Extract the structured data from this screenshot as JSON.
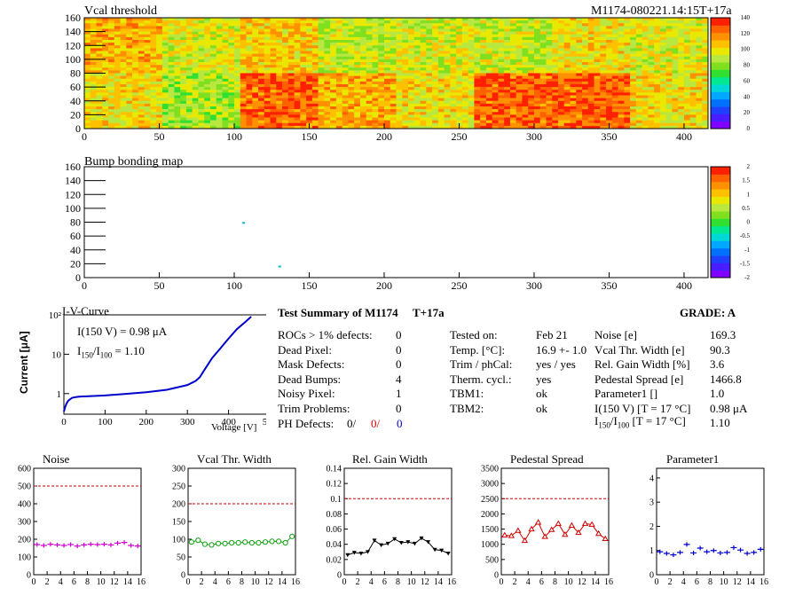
{
  "colors": {
    "palette": [
      "#7f00ff",
      "#4a1dff",
      "#2040ff",
      "#0070ff",
      "#00a8ff",
      "#00d8d8",
      "#00e890",
      "#30e030",
      "#80e020",
      "#b8e840",
      "#e8e800",
      "#ffc000",
      "#ff9000",
      "#ff6000",
      "#ff2000"
    ],
    "magenta": "#d000d0",
    "green": "#10a010",
    "black": "#000000",
    "red": "#d00000",
    "blue": "#0000d0",
    "ref_line": "#cc0000"
  },
  "vcal_map": {
    "title": "Vcal threshold",
    "module_label": "M1174-080221.14:15T+17a",
    "x_ticks": [
      "0",
      "50",
      "100",
      "150",
      "200",
      "250",
      "300",
      "350",
      "400"
    ],
    "y_ticks": [
      "0",
      "20",
      "40",
      "60",
      "80",
      "100",
      "120",
      "140",
      "160"
    ],
    "z_ticks": [
      "0",
      "20",
      "40",
      "60",
      "80",
      "100",
      "120",
      "140"
    ]
  },
  "bump_map": {
    "title": "Bump bonding map",
    "x_ticks": [
      "0",
      "50",
      "100",
      "150",
      "200",
      "250",
      "300",
      "350",
      "400"
    ],
    "y_ticks": [
      "0",
      "20",
      "40",
      "60",
      "80",
      "100",
      "120",
      "140",
      "160"
    ],
    "z_ticks": [
      "-2",
      "-1.5",
      "-1",
      "-0.5",
      "0",
      "0.5",
      "1",
      "1.5",
      "2"
    ]
  },
  "iv": {
    "title": "I-V-Curve",
    "ylabel": "Current [μA]",
    "xlabel": "Voltage [V]",
    "x_ticks": [
      "0",
      "100",
      "200",
      "300",
      "400",
      "500"
    ],
    "y_ticks": [
      "1",
      "10",
      "10²"
    ],
    "ann1": "I(150 V) = 0.98 μA",
    "ann2_a": "I",
    "ann2_sub1": "150",
    "ann2_b": "/I",
    "ann2_sub2": "100",
    "ann2_c": " =  1.10"
  },
  "summary": {
    "title": "Test Summary of M1174",
    "tag": "T+17a",
    "grade": "GRADE:  A",
    "left": [
      {
        "label": "ROCs > 1% defects:",
        "value": "0"
      },
      {
        "label": "Dead Pixel:",
        "value": "0"
      },
      {
        "label": "Mask Defects:",
        "value": "0"
      },
      {
        "label": "Dead Bumps:",
        "value": "4"
      },
      {
        "label": "Noisy Pixel:",
        "value": "1"
      },
      {
        "label": "Trim Problems:",
        "value": "0"
      }
    ],
    "ph_label": "PH Defects:",
    "ph_v1": "0/",
    "ph_v2": "0/",
    "ph_v3": "0",
    "middle": [
      {
        "label": "Tested on:",
        "value": "Feb 21"
      },
      {
        "label": "Temp. [°C]:",
        "value": "16.9 +- 1.0"
      },
      {
        "label": "Trim / phCal:",
        "value": "yes / yes"
      },
      {
        "label": "Therm. cycl.:",
        "value": "yes"
      },
      {
        "label": "TBM1:",
        "value": "ok"
      },
      {
        "label": "TBM2:",
        "value": "ok"
      }
    ],
    "right": [
      {
        "label": "Noise [e]",
        "value": "169.3"
      },
      {
        "label": "Vcal Thr. Width [e]",
        "value": "90.3"
      },
      {
        "label": "Rel. Gain Width [%]",
        "value": "3.6"
      },
      {
        "label": "Pedestal Spread [e]",
        "value": "1466.8"
      },
      {
        "label": "Parameter1 []",
        "value": "1.0"
      },
      {
        "label": "I(150 V) [T = 17 °C]",
        "value": "0.98 μA"
      }
    ],
    "last_a": "I",
    "last_sub1": "150",
    "last_b": "/I",
    "last_sub2": "100",
    "last_c": " [T = 17 °C]",
    "last_value": "1.10"
  },
  "chart_data": [
    {
      "type": "heatmap",
      "title": "Vcal threshold",
      "xlim": [
        0,
        416
      ],
      "ylim": [
        0,
        160
      ],
      "zlim": [
        0,
        140
      ],
      "description_blocks": "16 ROC blocks (8 x 2), each 52 x 80 pixels; mean thresholds per ROC",
      "roc_means_top": [
        110,
        95,
        105,
        90,
        95,
        90,
        100,
        95
      ],
      "roc_means_bottom": [
        100,
        85,
        125,
        110,
        100,
        125,
        125,
        100
      ]
    },
    {
      "type": "heatmap",
      "title": "Bump bonding map",
      "xlim": [
        0,
        416
      ],
      "ylim": [
        0,
        160
      ],
      "zlim": [
        -2,
        2
      ],
      "points": [
        {
          "x": 106,
          "y": 79
        },
        {
          "x": 130,
          "y": 16
        }
      ]
    },
    {
      "type": "line",
      "title": "I-V-Curve",
      "xlabel": "Voltage [V]",
      "ylabel": "Current [μA]",
      "xlim": [
        0,
        500
      ],
      "ylim": [
        0.3,
        100
      ],
      "yscale": "log",
      "x": [
        0,
        3,
        6,
        10,
        15,
        20,
        30,
        40,
        60,
        100,
        150,
        200,
        250,
        300,
        320,
        330,
        340,
        350,
        360,
        380,
        400,
        420,
        440,
        455
      ],
      "y": [
        0.35,
        0.45,
        0.55,
        0.65,
        0.72,
        0.78,
        0.82,
        0.84,
        0.86,
        0.9,
        0.98,
        1.08,
        1.25,
        1.65,
        2.1,
        2.6,
        3.8,
        5.5,
        8.0,
        14,
        25,
        43,
        65,
        90
      ]
    },
    {
      "type": "scatter",
      "title": "Noise",
      "xlim": [
        0,
        16
      ],
      "ylim": [
        0,
        600
      ],
      "ref_line": 500,
      "x_ticks": [
        0,
        2,
        4,
        6,
        8,
        10,
        12,
        14,
        16
      ],
      "y_ticks": [
        0,
        100,
        200,
        300,
        400,
        500,
        600
      ],
      "y_tick_labels": [
        "0",
        "100",
        "200",
        "300",
        "400",
        "500",
        "600"
      ],
      "x": [
        0,
        1,
        2,
        3,
        4,
        5,
        6,
        7,
        8,
        9,
        10,
        11,
        12,
        13,
        14,
        15
      ],
      "y": [
        170,
        165,
        172,
        168,
        165,
        170,
        162,
        168,
        172,
        170,
        172,
        168,
        178,
        182,
        165,
        162
      ]
    },
    {
      "type": "line",
      "title": "Vcal Thr. Width",
      "xlim": [
        0,
        16
      ],
      "ylim": [
        0,
        300
      ],
      "ref_line": 200,
      "x_ticks": [
        0,
        2,
        4,
        6,
        8,
        10,
        12,
        14,
        16
      ],
      "y_ticks": [
        0,
        50,
        100,
        150,
        200,
        250,
        300
      ],
      "y_tick_labels": [
        "0",
        "50",
        "100",
        "150",
        "200",
        "250",
        "300"
      ],
      "x": [
        0,
        1,
        2,
        3,
        4,
        5,
        6,
        7,
        8,
        9,
        10,
        11,
        12,
        13,
        14,
        15
      ],
      "y": [
        92,
        97,
        86,
        84,
        88,
        88,
        90,
        90,
        92,
        90,
        90,
        92,
        94,
        94,
        90,
        108
      ]
    },
    {
      "type": "line",
      "title": "Rel. Gain Width",
      "xlim": [
        0,
        16
      ],
      "ylim": [
        0,
        0.14
      ],
      "ref_line": 0.1,
      "x_ticks": [
        0,
        2,
        4,
        6,
        8,
        10,
        12,
        14,
        16
      ],
      "y_ticks": [
        0,
        0.02,
        0.04,
        0.06,
        0.08,
        0.1,
        0.12,
        0.14
      ],
      "y_tick_labels": [
        "0",
        "0.02",
        "0.04",
        "0.06",
        "0.08",
        "0.1",
        "0.12",
        "0.14"
      ],
      "x": [
        0,
        1,
        2,
        3,
        4,
        5,
        6,
        7,
        8,
        9,
        10,
        11,
        12,
        13,
        14,
        15
      ],
      "y": [
        0.026,
        0.029,
        0.028,
        0.03,
        0.045,
        0.039,
        0.041,
        0.047,
        0.042,
        0.043,
        0.041,
        0.048,
        0.043,
        0.033,
        0.032,
        0.028
      ]
    },
    {
      "type": "line",
      "title": "Pedestal Spread",
      "xlim": [
        0,
        16
      ],
      "ylim": [
        0,
        3500
      ],
      "ref_line": 2500,
      "x_ticks": [
        0,
        2,
        4,
        6,
        8,
        10,
        12,
        14,
        16
      ],
      "y_ticks": [
        0,
        500,
        1000,
        1500,
        2000,
        2500,
        3000,
        3500
      ],
      "y_tick_labels": [
        "0",
        "500",
        "1000",
        "1500",
        "2000",
        "2500",
        "3000",
        "3500"
      ],
      "x": [
        0,
        1,
        2,
        3,
        4,
        5,
        6,
        7,
        8,
        9,
        10,
        11,
        12,
        13,
        14,
        15
      ],
      "y": [
        1300,
        1280,
        1450,
        1120,
        1500,
        1720,
        1250,
        1480,
        1680,
        1320,
        1620,
        1380,
        1680,
        1650,
        1350,
        1180
      ]
    },
    {
      "type": "scatter",
      "title": "Parameter1",
      "xlim": [
        0,
        16
      ],
      "ylim": [
        0,
        4.4
      ],
      "x_ticks": [
        0,
        2,
        4,
        6,
        8,
        10,
        12,
        14,
        16
      ],
      "y_ticks": [
        0,
        1,
        2,
        3,
        4
      ],
      "y_tick_labels": [
        "0",
        "1",
        "2",
        "3",
        "4"
      ],
      "x": [
        0,
        1,
        2,
        3,
        4,
        5,
        6,
        7,
        8,
        9,
        10,
        11,
        12,
        13,
        14,
        15
      ],
      "y": [
        0.95,
        0.88,
        0.82,
        0.92,
        1.25,
        0.9,
        1.1,
        0.95,
        1.0,
        0.9,
        0.92,
        1.12,
        1.02,
        0.88,
        0.92,
        1.05
      ]
    }
  ]
}
